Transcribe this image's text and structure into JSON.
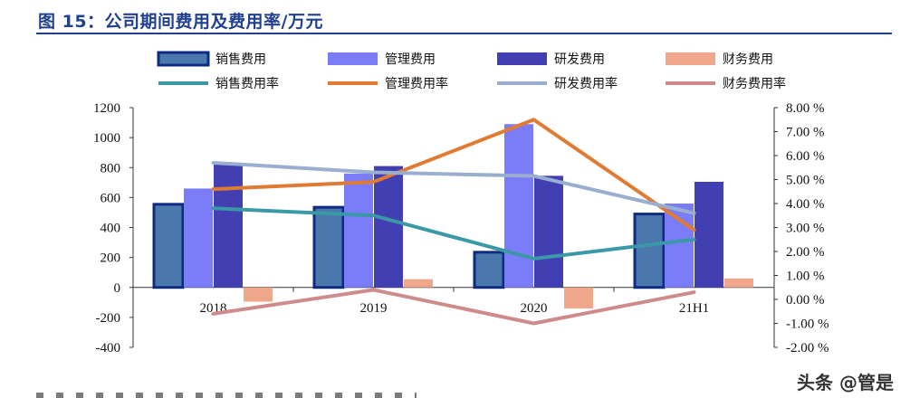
{
  "title": "图 15：公司期间费用及费用率/万元",
  "watermark": "头条 @管是",
  "colors": {
    "title": "#1f3f8f",
    "sales_bar": "#4a78ad",
    "sales_bar_border": "#0f2a80",
    "mgmt_bar": "#7b7cf7",
    "rd_bar": "#423fb3",
    "fin_bar": "#f0a68a",
    "sales_rate": "#3a98a7",
    "mgmt_rate": "#e07b34",
    "rd_rate": "#9aaed0",
    "fin_rate": "#cf8a8c"
  },
  "chart_data": {
    "type": "bar",
    "categories": [
      "2018",
      "2019",
      "2020",
      "21H1"
    ],
    "left_axis": {
      "ylim": [
        -400,
        1200
      ],
      "ticks": [
        "1200",
        "1000",
        "800",
        "600",
        "400",
        "200",
        "0",
        "-200",
        "-400"
      ]
    },
    "right_axis": {
      "ylim": [
        -2.0,
        8.0
      ],
      "unit": "%",
      "ticks": [
        "8.00 %",
        "7.00 %",
        "6.00 %",
        "5.00 %",
        "4.00 %",
        "3.00 %",
        "2.00 %",
        "1.00 %",
        "0.00 %",
        "-1.00 %",
        "-2.00 %"
      ]
    },
    "bar_series": [
      {
        "name": "销售费用",
        "values": [
          555,
          535,
          235,
          490
        ]
      },
      {
        "name": "管理费用",
        "values": [
          660,
          760,
          1090,
          560
        ]
      },
      {
        "name": "研发费用",
        "values": [
          830,
          810,
          745,
          705
        ]
      },
      {
        "name": "财务费用",
        "values": [
          -95,
          55,
          -140,
          60
        ]
      }
    ],
    "line_series": [
      {
        "name": "销售费用率",
        "values": [
          3.8,
          3.5,
          1.7,
          2.5
        ]
      },
      {
        "name": "管理费用率",
        "values": [
          4.6,
          4.9,
          7.5,
          2.9
        ]
      },
      {
        "name": "研发费用率",
        "values": [
          5.7,
          5.3,
          5.15,
          3.6
        ]
      },
      {
        "name": "财务费用率",
        "values": [
          -0.6,
          0.4,
          -1.0,
          0.3
        ]
      }
    ],
    "legend_position": "top"
  }
}
